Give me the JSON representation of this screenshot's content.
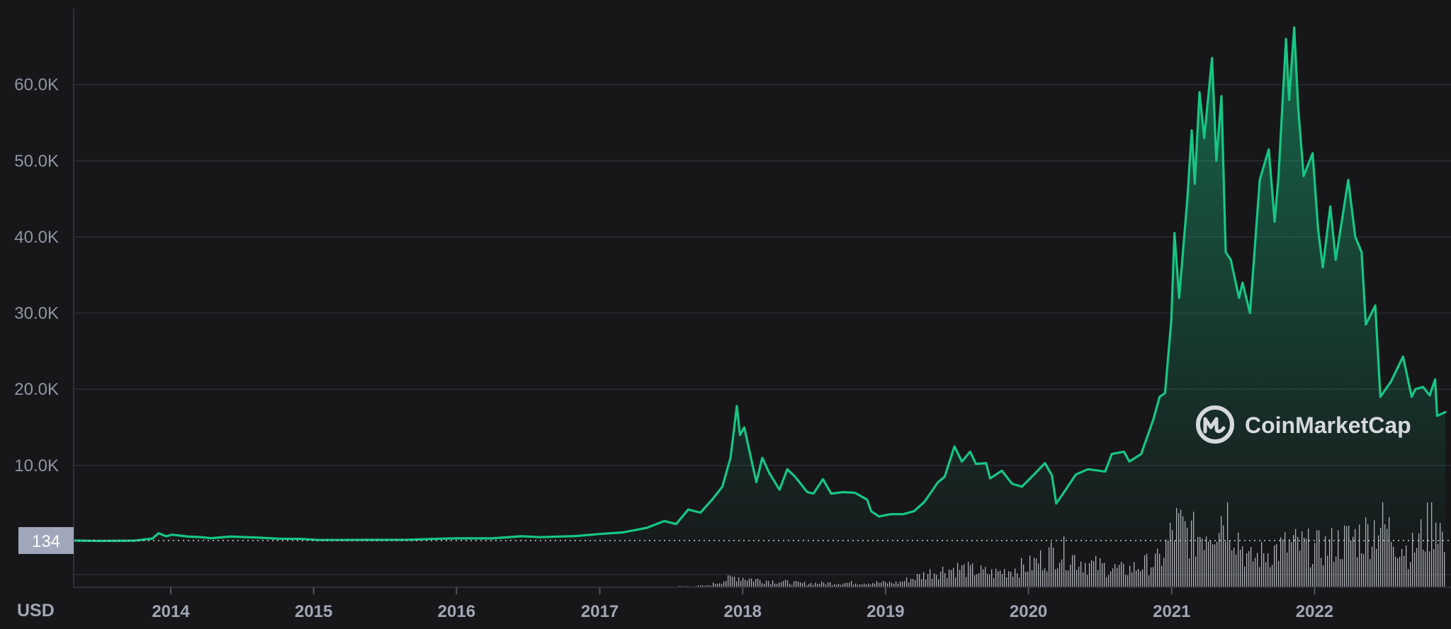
{
  "chart_data": {
    "type": "area",
    "currency_label": "USD",
    "watermark": "CoinMarketCap",
    "colors": {
      "line": "#16c784",
      "background": "#17171a",
      "grid": "#2b2d33",
      "volume": "#c8cbd2",
      "badge": "#a1a7bb"
    },
    "ylim": [
      -6000,
      70000
    ],
    "y_ticks": [
      {
        "value": 10000,
        "label": "10.0K"
      },
      {
        "value": 20000,
        "label": "20.0K"
      },
      {
        "value": 30000,
        "label": "30.0K"
      },
      {
        "value": 40000,
        "label": "40.0K"
      },
      {
        "value": 50000,
        "label": "50.0K"
      },
      {
        "value": 60000,
        "label": "60.0K"
      }
    ],
    "x_ticks": [
      "2014",
      "2015",
      "2016",
      "2017",
      "2018",
      "2019",
      "2020",
      "2021",
      "2022"
    ],
    "reference_line": {
      "value": 134,
      "label": "134"
    },
    "grid": true,
    "series": [
      {
        "points": [
          [
            "2013-04-28",
            134
          ],
          [
            "2013-07-01",
            90
          ],
          [
            "2013-10-01",
            125
          ],
          [
            "2013-11-15",
            400
          ],
          [
            "2013-12-01",
            1100
          ],
          [
            "2013-12-20",
            700
          ],
          [
            "2014-01-05",
            900
          ],
          [
            "2014-02-15",
            650
          ],
          [
            "2014-03-15",
            600
          ],
          [
            "2014-04-15",
            450
          ],
          [
            "2014-06-01",
            650
          ],
          [
            "2014-08-01",
            550
          ],
          [
            "2014-10-01",
            380
          ],
          [
            "2014-12-01",
            350
          ],
          [
            "2015-01-15",
            210
          ],
          [
            "2015-06-01",
            225
          ],
          [
            "2015-09-01",
            230
          ],
          [
            "2015-11-01",
            350
          ],
          [
            "2016-01-01",
            430
          ],
          [
            "2016-04-01",
            420
          ],
          [
            "2016-06-15",
            700
          ],
          [
            "2016-08-01",
            580
          ],
          [
            "2016-11-01",
            730
          ],
          [
            "2017-01-01",
            1000
          ],
          [
            "2017-03-01",
            1200
          ],
          [
            "2017-05-01",
            1800
          ],
          [
            "2017-06-15",
            2700
          ],
          [
            "2017-07-15",
            2300
          ],
          [
            "2017-08-15",
            4200
          ],
          [
            "2017-09-15",
            3800
          ],
          [
            "2017-10-15",
            5500
          ],
          [
            "2017-11-10",
            7200
          ],
          [
            "2017-12-01",
            11000
          ],
          [
            "2017-12-17",
            17800
          ],
          [
            "2017-12-25",
            14000
          ],
          [
            "2018-01-05",
            15000
          ],
          [
            "2018-01-20",
            11500
          ],
          [
            "2018-02-05",
            7800
          ],
          [
            "2018-02-20",
            11000
          ],
          [
            "2018-03-10",
            9000
          ],
          [
            "2018-04-05",
            6800
          ],
          [
            "2018-04-25",
            9500
          ],
          [
            "2018-05-15",
            8500
          ],
          [
            "2018-06-15",
            6500
          ],
          [
            "2018-07-01",
            6300
          ],
          [
            "2018-07-25",
            8200
          ],
          [
            "2018-08-15",
            6300
          ],
          [
            "2018-09-15",
            6500
          ],
          [
            "2018-10-15",
            6400
          ],
          [
            "2018-11-15",
            5500
          ],
          [
            "2018-11-25",
            4000
          ],
          [
            "2018-12-15",
            3300
          ],
          [
            "2019-01-15",
            3600
          ],
          [
            "2019-02-15",
            3600
          ],
          [
            "2019-03-15",
            4000
          ],
          [
            "2019-04-10",
            5200
          ],
          [
            "2019-05-15",
            7800
          ],
          [
            "2019-06-01",
            8500
          ],
          [
            "2019-06-26",
            12500
          ],
          [
            "2019-07-15",
            10500
          ],
          [
            "2019-08-05",
            11800
          ],
          [
            "2019-08-20",
            10200
          ],
          [
            "2019-09-15",
            10300
          ],
          [
            "2019-09-25",
            8300
          ],
          [
            "2019-10-25",
            9300
          ],
          [
            "2019-11-20",
            7600
          ],
          [
            "2019-12-15",
            7200
          ],
          [
            "2020-01-15",
            8800
          ],
          [
            "2020-02-12",
            10300
          ],
          [
            "2020-03-01",
            8700
          ],
          [
            "2020-03-12",
            5000
          ],
          [
            "2020-04-01",
            6500
          ],
          [
            "2020-05-01",
            8800
          ],
          [
            "2020-06-01",
            9500
          ],
          [
            "2020-07-15",
            9200
          ],
          [
            "2020-08-01",
            11500
          ],
          [
            "2020-09-01",
            11800
          ],
          [
            "2020-09-15",
            10500
          ],
          [
            "2020-10-15",
            11500
          ],
          [
            "2020-11-15",
            16000
          ],
          [
            "2020-12-01",
            19000
          ],
          [
            "2020-12-15",
            19500
          ],
          [
            "2020-12-31",
            29000
          ],
          [
            "2021-01-08",
            40500
          ],
          [
            "2021-01-20",
            32000
          ],
          [
            "2021-02-10",
            45000
          ],
          [
            "2021-02-21",
            54000
          ],
          [
            "2021-03-01",
            47000
          ],
          [
            "2021-03-13",
            59000
          ],
          [
            "2021-03-25",
            53000
          ],
          [
            "2021-04-14",
            63500
          ],
          [
            "2021-04-25",
            50000
          ],
          [
            "2021-05-08",
            58500
          ],
          [
            "2021-05-19",
            38000
          ],
          [
            "2021-06-01",
            37000
          ],
          [
            "2021-06-22",
            32000
          ],
          [
            "2021-07-01",
            34000
          ],
          [
            "2021-07-20",
            30000
          ],
          [
            "2021-08-14",
            47500
          ],
          [
            "2021-09-06",
            51500
          ],
          [
            "2021-09-21",
            42000
          ],
          [
            "2021-10-01",
            48000
          ],
          [
            "2021-10-20",
            66000
          ],
          [
            "2021-10-28",
            58000
          ],
          [
            "2021-11-10",
            67500
          ],
          [
            "2021-11-20",
            57000
          ],
          [
            "2021-12-04",
            48000
          ],
          [
            "2021-12-27",
            51000
          ],
          [
            "2022-01-10",
            41000
          ],
          [
            "2022-01-22",
            36000
          ],
          [
            "2022-02-10",
            44000
          ],
          [
            "2022-02-24",
            37000
          ],
          [
            "2022-03-28",
            47500
          ],
          [
            "2022-04-15",
            40000
          ],
          [
            "2022-05-01",
            38000
          ],
          [
            "2022-05-12",
            28500
          ],
          [
            "2022-06-05",
            31000
          ],
          [
            "2022-06-18",
            19000
          ],
          [
            "2022-07-15",
            21000
          ],
          [
            "2022-08-15",
            24300
          ],
          [
            "2022-09-06",
            19000
          ],
          [
            "2022-09-15",
            20000
          ],
          [
            "2022-10-05",
            20300
          ],
          [
            "2022-10-22",
            19200
          ],
          [
            "2022-11-05",
            21300
          ],
          [
            "2022-11-10",
            16500
          ],
          [
            "2022-12-01",
            17000
          ]
        ]
      }
    ],
    "volume_series": {
      "points": [
        [
          "2013-04-28",
          0.1
        ],
        [
          "2017-06-01",
          0.5
        ],
        [
          "2017-10-01",
          2
        ],
        [
          "2017-12-15",
          14
        ],
        [
          "2018-02-01",
          10
        ],
        [
          "2018-06-01",
          5
        ],
        [
          "2018-11-15",
          6
        ],
        [
          "2019-02-01",
          6
        ],
        [
          "2019-05-01",
          20
        ],
        [
          "2019-07-01",
          25
        ],
        [
          "2019-10-01",
          18
        ],
        [
          "2020-01-01",
          28
        ],
        [
          "2020-03-15",
          48
        ],
        [
          "2020-06-01",
          30
        ],
        [
          "2020-09-01",
          22
        ],
        [
          "2020-12-01",
          35
        ],
        [
          "2021-01-10",
          80
        ],
        [
          "2021-03-01",
          65
        ],
        [
          "2021-05-20",
          100
        ],
        [
          "2021-07-15",
          35
        ],
        [
          "2021-09-01",
          45
        ],
        [
          "2021-11-01",
          55
        ],
        [
          "2022-01-15",
          50
        ],
        [
          "2022-05-15",
          70
        ],
        [
          "2022-06-15",
          85
        ],
        [
          "2022-09-01",
          45
        ],
        [
          "2022-11-10",
          95
        ],
        [
          "2022-12-01",
          40
        ]
      ]
    }
  }
}
